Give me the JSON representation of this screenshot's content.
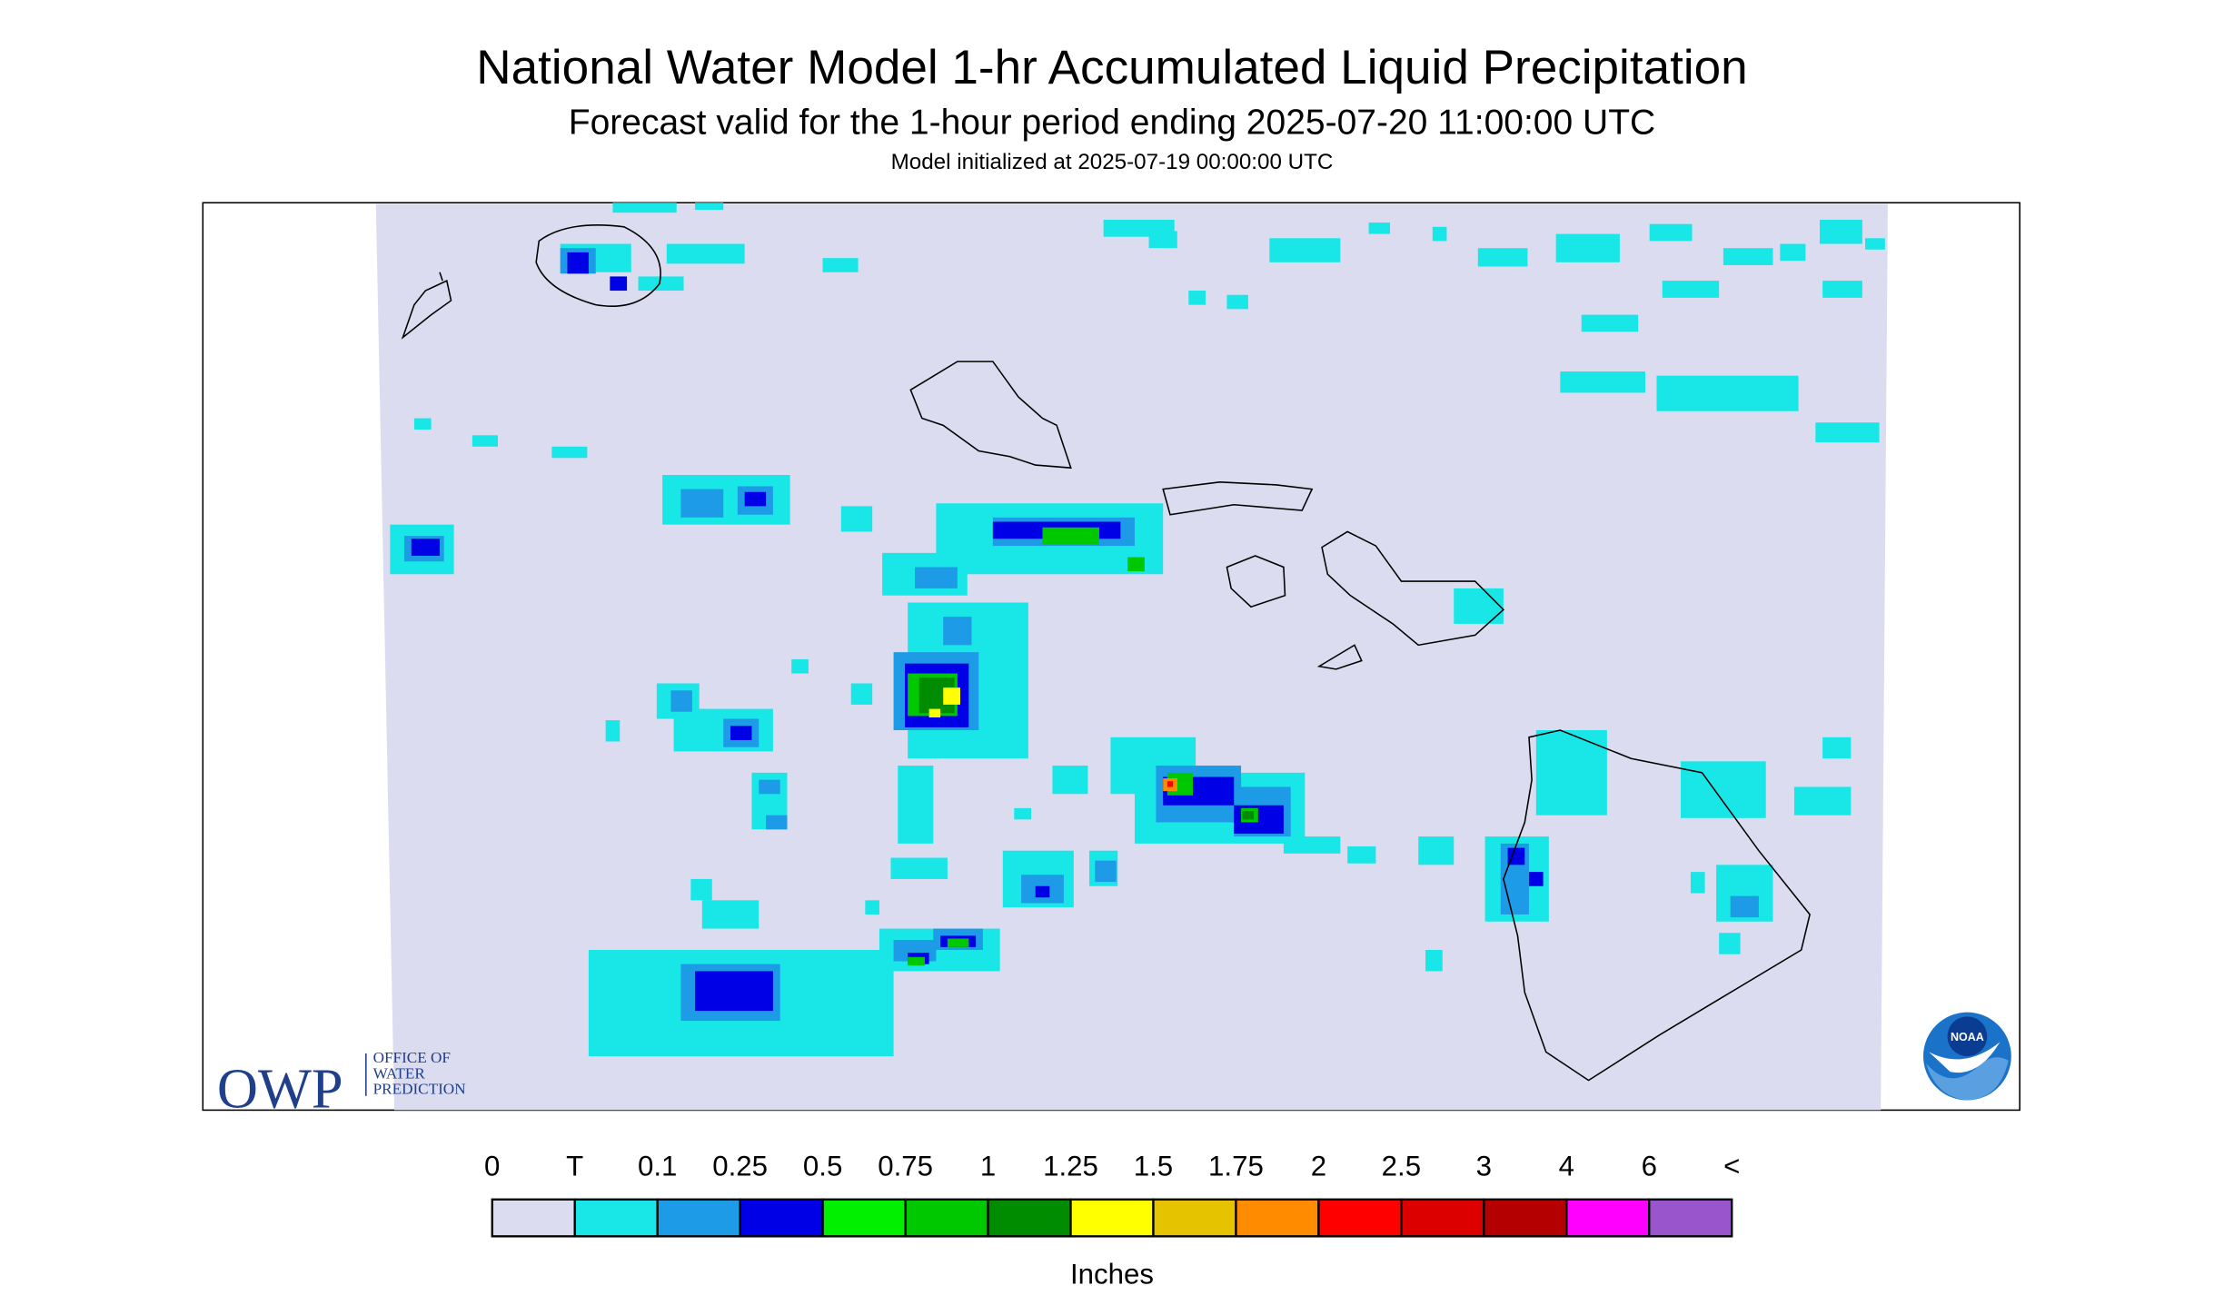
{
  "header": {
    "title": "National Water Model 1-hr Accumulated Liquid Precipitation",
    "subtitle": "Forecast valid for the 1-hour period ending 2025-07-20 11:00:00 UTC",
    "init": "Model initialized at 2025-07-19 00:00:00 UTC"
  },
  "legend": {
    "labels": [
      "0",
      "T",
      "0.1",
      "0.25",
      "0.5",
      "0.75",
      "1",
      "1.25",
      "1.5",
      "1.75",
      "2",
      "2.5",
      "3",
      "4",
      "6",
      "<"
    ],
    "colors": [
      "#dcdcf0",
      "#19e6e6",
      "#1e9be6",
      "#0000e6",
      "#00f000",
      "#00c800",
      "#008c00",
      "#ffff00",
      "#e6c300",
      "#ff8c00",
      "#ff0000",
      "#dc0000",
      "#b40000",
      "#ff00ff",
      "#9955cc"
    ],
    "unit": "Inches"
  },
  "logos": {
    "owp": "OWP",
    "owp_lines": [
      "OFFICE OF",
      "WATER",
      "PREDICTION"
    ],
    "noaa": "NOAA"
  }
}
